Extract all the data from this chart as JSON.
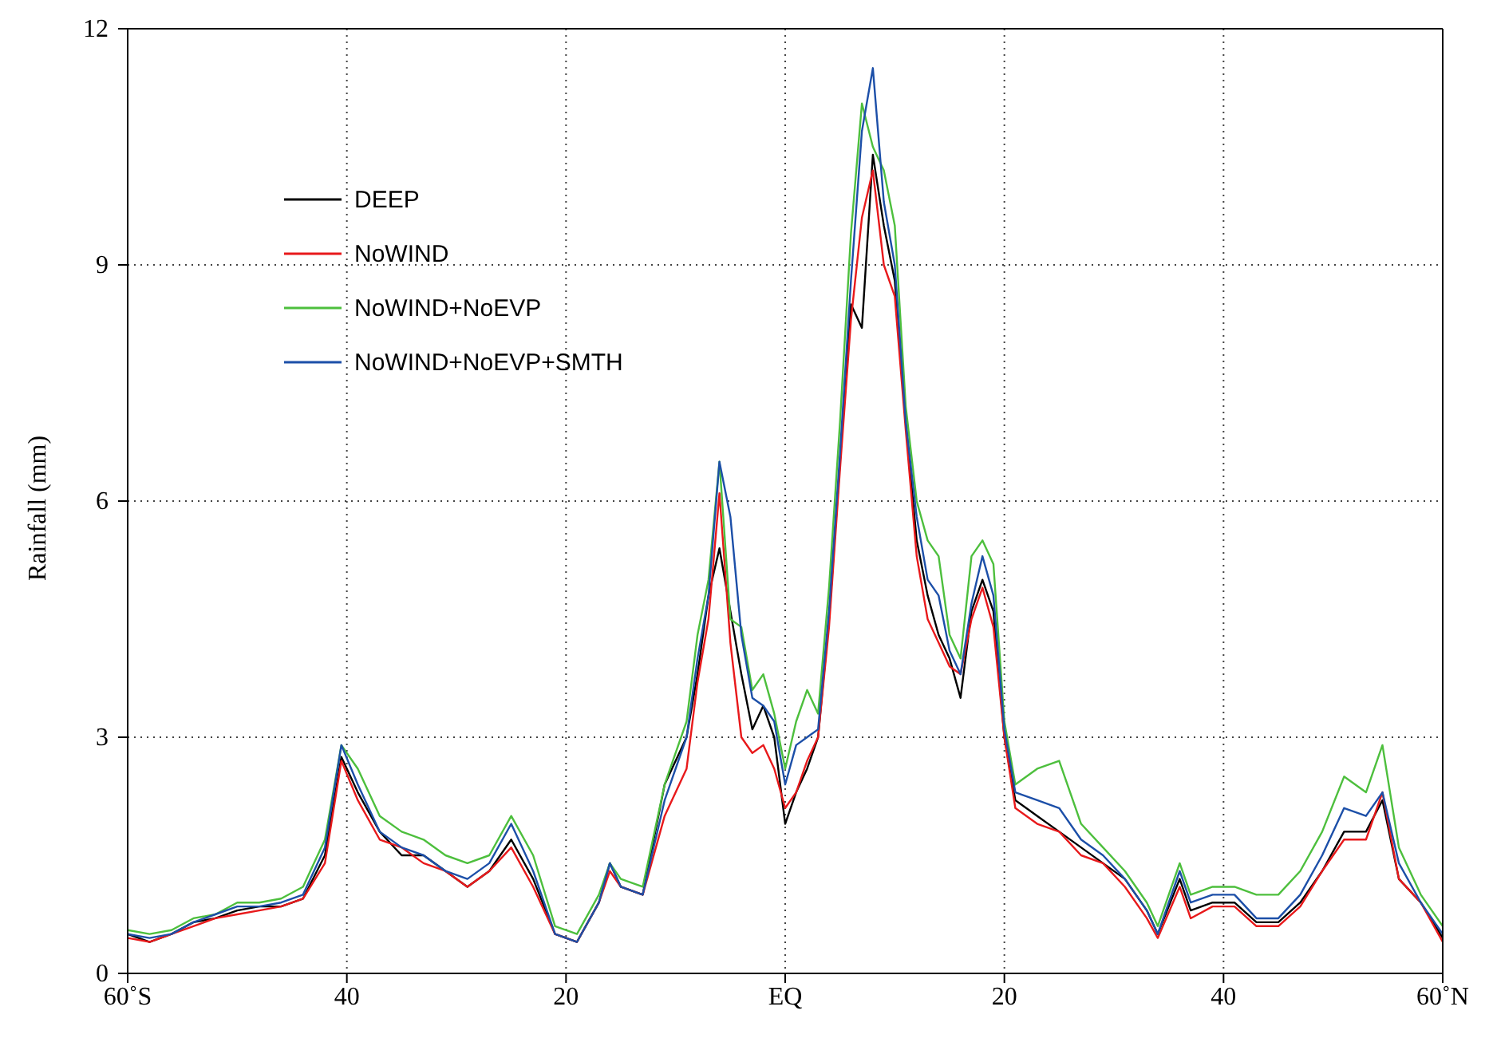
{
  "chart_data": {
    "type": "line",
    "ylabel": "Rainfall (mm)",
    "x": [
      -60,
      -58,
      -56,
      -54,
      -52,
      -50,
      -48,
      -46,
      -44,
      -42,
      -40.5,
      -39,
      -37,
      -35,
      -33,
      -31,
      -29,
      -27,
      -25,
      -23,
      -21,
      -19,
      -17,
      -16,
      -15,
      -13,
      -11,
      -9,
      -8,
      -7,
      -6,
      -5,
      -4,
      -3,
      -2,
      -1,
      0,
      1,
      2,
      3,
      4,
      5,
      6,
      7,
      8,
      9,
      10,
      11,
      12,
      13,
      14,
      15,
      16,
      17,
      18,
      19,
      20,
      21,
      23,
      25,
      27,
      29,
      31,
      33,
      34,
      36,
      37,
      39,
      41,
      43,
      45,
      47,
      49,
      51,
      53,
      54.5,
      56,
      58,
      60
    ],
    "series": [
      {
        "name": "DEEP",
        "color": "#000000",
        "values": [
          0.5,
          0.4,
          0.5,
          0.65,
          0.7,
          0.8,
          0.85,
          0.85,
          0.95,
          1.5,
          2.75,
          2.3,
          1.8,
          1.5,
          1.5,
          1.3,
          1.1,
          1.3,
          1.7,
          1.2,
          0.5,
          0.4,
          0.9,
          1.4,
          1.1,
          1.0,
          2.4,
          3.0,
          3.8,
          4.8,
          5.4,
          4.6,
          3.8,
          3.1,
          3.4,
          3.0,
          1.9,
          2.3,
          2.6,
          3.0,
          4.5,
          6.5,
          8.5,
          8.2,
          10.4,
          9.5,
          8.8,
          7.0,
          5.5,
          4.8,
          4.3,
          4.0,
          3.5,
          4.6,
          5.0,
          4.6,
          3.0,
          2.2,
          2.0,
          1.8,
          1.6,
          1.4,
          1.2,
          0.8,
          0.5,
          1.2,
          0.8,
          0.9,
          0.9,
          0.65,
          0.65,
          0.9,
          1.3,
          1.8,
          1.8,
          2.2,
          1.2,
          0.9,
          0.45
        ]
      },
      {
        "name": "NoWIND",
        "color": "#e8191b",
        "values": [
          0.45,
          0.4,
          0.5,
          0.6,
          0.7,
          0.75,
          0.8,
          0.85,
          0.95,
          1.4,
          2.7,
          2.2,
          1.7,
          1.6,
          1.4,
          1.3,
          1.1,
          1.3,
          1.6,
          1.1,
          0.5,
          0.4,
          0.9,
          1.3,
          1.1,
          1.0,
          2.0,
          2.6,
          3.7,
          4.5,
          6.1,
          4.2,
          3.0,
          2.8,
          2.9,
          2.6,
          2.1,
          2.3,
          2.7,
          3.0,
          4.4,
          6.4,
          8.3,
          9.6,
          10.2,
          9.0,
          8.6,
          6.9,
          5.3,
          4.5,
          4.2,
          3.9,
          3.8,
          4.5,
          4.9,
          4.4,
          3.0,
          2.1,
          1.9,
          1.8,
          1.5,
          1.4,
          1.1,
          0.7,
          0.45,
          1.1,
          0.7,
          0.85,
          0.85,
          0.6,
          0.6,
          0.85,
          1.3,
          1.7,
          1.7,
          2.3,
          1.2,
          0.9,
          0.4
        ]
      },
      {
        "name": "NoWIND+NoEVP",
        "color": "#4dbf3d",
        "values": [
          0.55,
          0.5,
          0.55,
          0.7,
          0.75,
          0.9,
          0.9,
          0.95,
          1.1,
          1.7,
          2.9,
          2.6,
          2.0,
          1.8,
          1.7,
          1.5,
          1.4,
          1.5,
          2.0,
          1.5,
          0.6,
          0.5,
          1.0,
          1.4,
          1.2,
          1.1,
          2.4,
          3.2,
          4.3,
          5.0,
          6.5,
          4.5,
          4.4,
          3.6,
          3.8,
          3.3,
          2.6,
          3.2,
          3.6,
          3.3,
          4.9,
          7.0,
          9.4,
          11.05,
          10.5,
          10.2,
          9.5,
          7.2,
          6.0,
          5.5,
          5.3,
          4.3,
          4.0,
          5.3,
          5.5,
          5.2,
          3.2,
          2.4,
          2.6,
          2.7,
          1.9,
          1.6,
          1.3,
          0.9,
          0.6,
          1.4,
          1.0,
          1.1,
          1.1,
          1.0,
          1.0,
          1.3,
          1.8,
          2.5,
          2.3,
          2.9,
          1.6,
          1.0,
          0.6
        ]
      },
      {
        "name": "NoWIND+NoEVP+SMTH",
        "color": "#1c4fa8",
        "values": [
          0.5,
          0.45,
          0.5,
          0.65,
          0.75,
          0.85,
          0.85,
          0.9,
          1.0,
          1.6,
          2.9,
          2.4,
          1.8,
          1.6,
          1.5,
          1.3,
          1.2,
          1.4,
          1.9,
          1.3,
          0.5,
          0.4,
          0.9,
          1.4,
          1.1,
          1.0,
          2.2,
          3.0,
          4.0,
          4.8,
          6.5,
          5.8,
          4.3,
          3.5,
          3.4,
          3.2,
          2.4,
          2.9,
          3.0,
          3.1,
          4.6,
          6.6,
          8.8,
          10.7,
          11.5,
          9.8,
          9.0,
          7.0,
          5.8,
          5.0,
          4.8,
          4.1,
          3.8,
          4.7,
          5.3,
          4.8,
          3.1,
          2.3,
          2.2,
          2.1,
          1.7,
          1.5,
          1.2,
          0.8,
          0.5,
          1.3,
          0.9,
          1.0,
          1.0,
          0.7,
          0.7,
          1.0,
          1.5,
          2.1,
          2.0,
          2.3,
          1.4,
          0.9,
          0.5
        ]
      }
    ],
    "xlim": [
      -60,
      60
    ],
    "xticks": [
      {
        "value": -60,
        "label": "60˚S"
      },
      {
        "value": -40,
        "label": "40"
      },
      {
        "value": -20,
        "label": "20"
      },
      {
        "value": 0,
        "label": "EQ"
      },
      {
        "value": 20,
        "label": "20"
      },
      {
        "value": 40,
        "label": "40"
      },
      {
        "value": 60,
        "label": "60˚N"
      }
    ],
    "ylim": [
      0,
      12
    ],
    "yticks": [
      0,
      3,
      6,
      9,
      12
    ],
    "grid": true,
    "legend": "top left",
    "marker": "none",
    "line_style": "solid"
  }
}
